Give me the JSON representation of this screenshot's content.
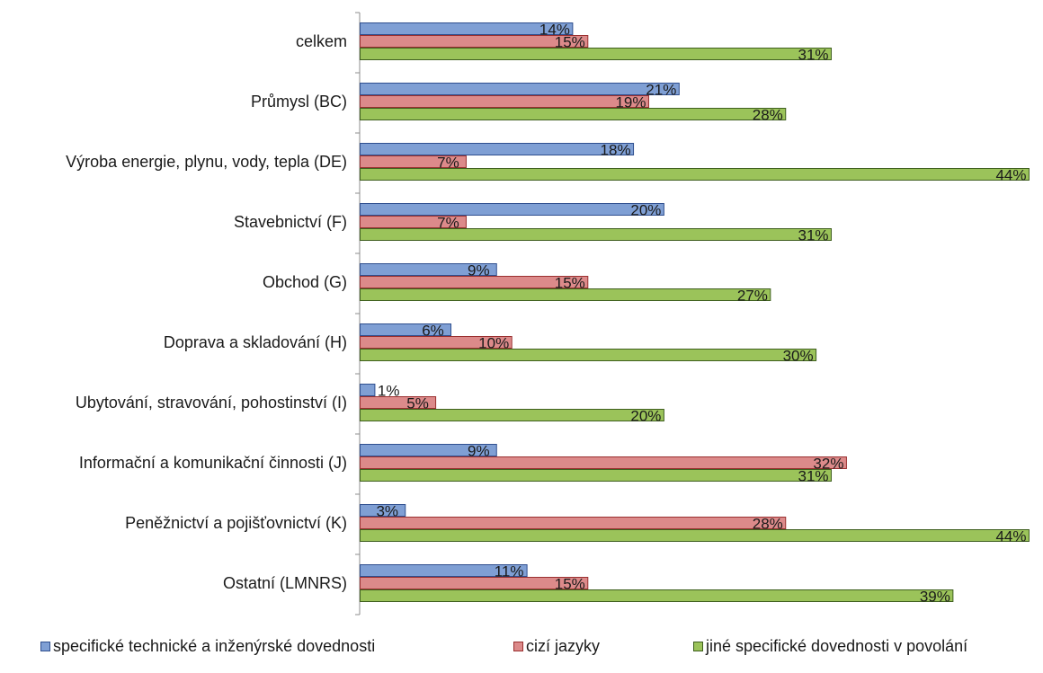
{
  "chart_data": {
    "type": "bar",
    "orientation": "horizontal",
    "categories": [
      "celkem",
      "Průmysl (BC)",
      "Výroba energie, plynu, vody, tepla (DE)",
      "Stavebnictví (F)",
      "Obchod (G)",
      "Doprava a skladování (H)",
      "Ubytování, stravování, pohostinství (I)",
      "Informační a komunikační činnosti (J)",
      "Peněžnictví a pojišťovnictví (K)",
      "Ostatní (LMNRS)"
    ],
    "series": [
      {
        "name": "specifické technické a inženýrské dovednosti",
        "values": [
          14,
          21,
          18,
          20,
          9,
          6,
          1,
          9,
          3,
          11
        ],
        "labels": [
          "14%",
          "21%",
          "18%",
          "20%",
          "9%",
          "6%",
          "1%",
          "9%",
          "3%",
          "11%"
        ],
        "fill": "#7f9fd4",
        "stroke": "#2f4f8f"
      },
      {
        "name": "cizí jazyky",
        "values": [
          15,
          19,
          7,
          7,
          15,
          10,
          5,
          32,
          28,
          15
        ],
        "labels": [
          "15%",
          "19%",
          "7%",
          "7%",
          "15%",
          "10%",
          "5%",
          "32%",
          "28%",
          "15%"
        ],
        "fill": "#dc8a8a",
        "stroke": "#9a3030"
      },
      {
        "name": "jiné specifické dovednosti v povolání",
        "values": [
          31,
          28,
          44,
          31,
          27,
          30,
          20,
          31,
          44,
          39
        ],
        "labels": [
          "31%",
          "28%",
          "44%",
          "31%",
          "27%",
          "30%",
          "20%",
          "31%",
          "44%",
          "39%"
        ],
        "fill": "#9bc35a",
        "stroke": "#3f5f1f"
      }
    ],
    "xlim": [
      0,
      44.8
    ],
    "grid": false,
    "legend_position": "bottom"
  }
}
